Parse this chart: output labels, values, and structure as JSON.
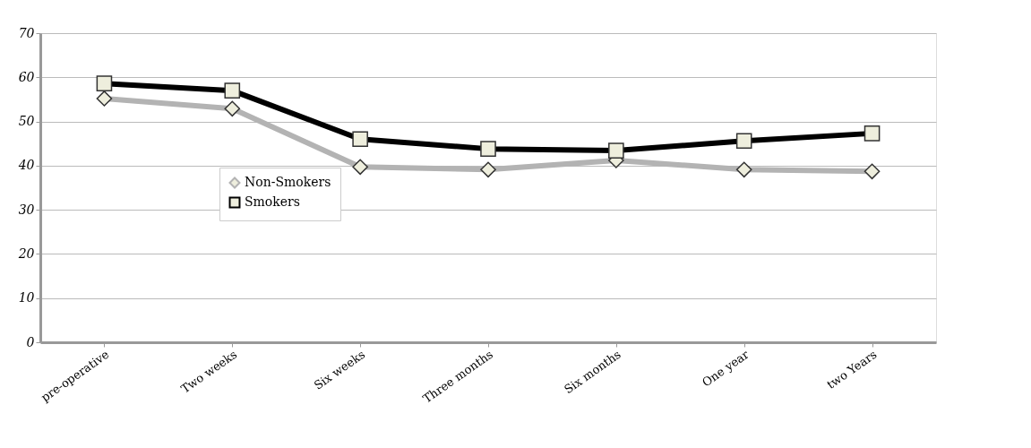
{
  "chart_data": {
    "type": "line",
    "categories": [
      "pre-operative",
      "Two weeks",
      "Six weeks",
      "Three months",
      "Six months",
      "One year",
      "two Years"
    ],
    "series": [
      {
        "name": "Non-Smokers",
        "color": "#b3b3b3",
        "marker": "diamond",
        "values": [
          55.2,
          52.9,
          39.7,
          39.1,
          41.2,
          39.1,
          38.7
        ]
      },
      {
        "name": "Smokers",
        "color": "#000000",
        "marker": "square",
        "values": [
          58.6,
          57.0,
          46.0,
          43.8,
          43.4,
          45.6,
          47.3
        ]
      }
    ],
    "ylim": [
      0,
      70
    ],
    "yticks": [
      0,
      10,
      20,
      30,
      40,
      50,
      60,
      70
    ],
    "grid": "y",
    "legend": "left",
    "line_style": "solid"
  }
}
